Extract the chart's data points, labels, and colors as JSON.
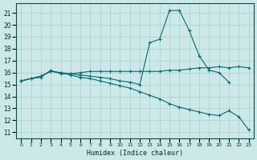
{
  "xlabel": "Humidex (Indice chaleur)",
  "background_color": "#cce8e8",
  "grid_color": "#aacece",
  "line_color": "#007070",
  "xlim": [
    -0.5,
    23.5
  ],
  "ylim": [
    10.5,
    21.8
  ],
  "yticks": [
    11,
    12,
    13,
    14,
    15,
    16,
    17,
    18,
    19,
    20,
    21
  ],
  "xticks": [
    0,
    1,
    2,
    3,
    4,
    5,
    6,
    7,
    8,
    9,
    10,
    11,
    12,
    13,
    14,
    15,
    16,
    17,
    18,
    19,
    20,
    21,
    22,
    23
  ],
  "series1_x": [
    0,
    1,
    2,
    3,
    4,
    5,
    6,
    7,
    8,
    9,
    10,
    11,
    12,
    13,
    14,
    15,
    16,
    17,
    18,
    19,
    20,
    21,
    22,
    23
  ],
  "series1_y": [
    15.3,
    15.5,
    15.6,
    16.2,
    15.9,
    15.9,
    16.0,
    16.1,
    16.1,
    16.1,
    16.1,
    16.1,
    16.1,
    16.1,
    16.1,
    16.2,
    16.2,
    16.3,
    16.4,
    16.4,
    16.5,
    16.4,
    16.5,
    16.4
  ],
  "series2_x": [
    0,
    1,
    2,
    3,
    4,
    5,
    6,
    7,
    8,
    9,
    10,
    11,
    12,
    13,
    14,
    15,
    16,
    17,
    18,
    19,
    20,
    21,
    22,
    23
  ],
  "series2_y": [
    15.3,
    15.5,
    15.7,
    16.1,
    16.0,
    15.8,
    15.6,
    15.5,
    15.3,
    15.1,
    14.9,
    14.7,
    14.4,
    14.1,
    13.8,
    13.4,
    13.1,
    12.9,
    12.7,
    12.5,
    12.4,
    12.8,
    12.3,
    11.2
  ],
  "series3_x": [
    0,
    1,
    2,
    3,
    4,
    5,
    6,
    7,
    8,
    9,
    10,
    11,
    12,
    13,
    14,
    15,
    16,
    17,
    18,
    19,
    20,
    21,
    22
  ],
  "series3_y": [
    15.3,
    15.5,
    15.7,
    16.1,
    16.0,
    15.9,
    15.8,
    15.7,
    15.6,
    15.5,
    15.3,
    15.2,
    15.0,
    18.5,
    18.8,
    21.2,
    21.2,
    19.5,
    17.4,
    16.2,
    16.0,
    15.2,
    null
  ]
}
